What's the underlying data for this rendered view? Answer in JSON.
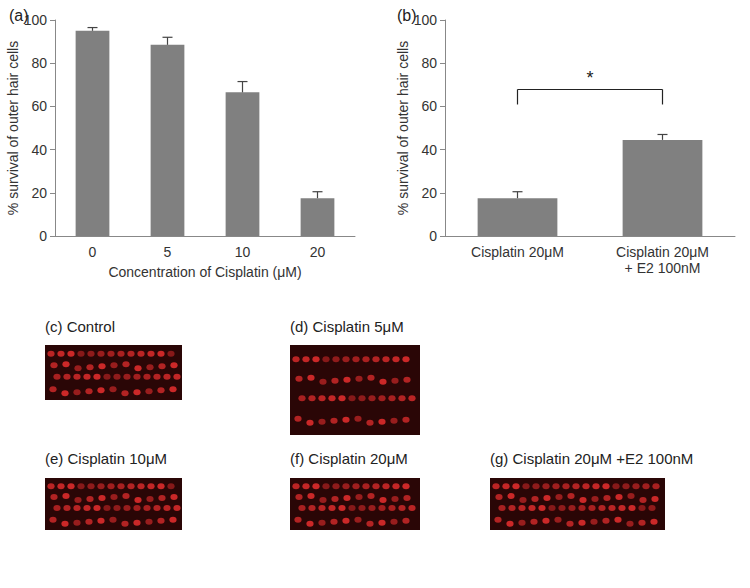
{
  "chart_data": [
    {
      "type": "bar",
      "title": "(a)",
      "categories": [
        "0",
        "5",
        "10",
        "20"
      ],
      "values": [
        95,
        88.5,
        66.5,
        17.5
      ],
      "errors": [
        1.5,
        3.5,
        5,
        3
      ],
      "color": "#808080",
      "xlabel": "Concentration of Cisplatin (μM)",
      "ylabel": "% survival of outer hair cells",
      "ylim": [
        0,
        100
      ],
      "yticks": [
        0,
        20,
        40,
        60,
        80,
        100
      ],
      "grid": false
    },
    {
      "type": "bar",
      "title": "(b)",
      "categories": [
        "Cisplatin 20μM",
        "Cisplatin 20μM\n+ E2 100nM"
      ],
      "values": [
        17.5,
        44.5
      ],
      "errors": [
        3,
        2.5
      ],
      "color": "#808080",
      "ylabel": "% survival of outer hair cells",
      "ylim": [
        0,
        100
      ],
      "yticks": [
        0,
        20,
        40,
        60,
        80,
        100
      ],
      "grid": false,
      "annotations": [
        {
          "text": "*",
          "from": "Cisplatin 20μM",
          "to": "Cisplatin 20μM\n+ E2 100nM"
        }
      ]
    }
  ],
  "images": [
    {
      "label": "(c) Control"
    },
    {
      "label": "(d) Cisplatin 5μM"
    },
    {
      "label": "(e) Cisplatin 10μM"
    },
    {
      "label": "(f) Cisplatin 20μM"
    },
    {
      "label": "(g) Cisplatin 20μM +E2 100nM"
    }
  ]
}
